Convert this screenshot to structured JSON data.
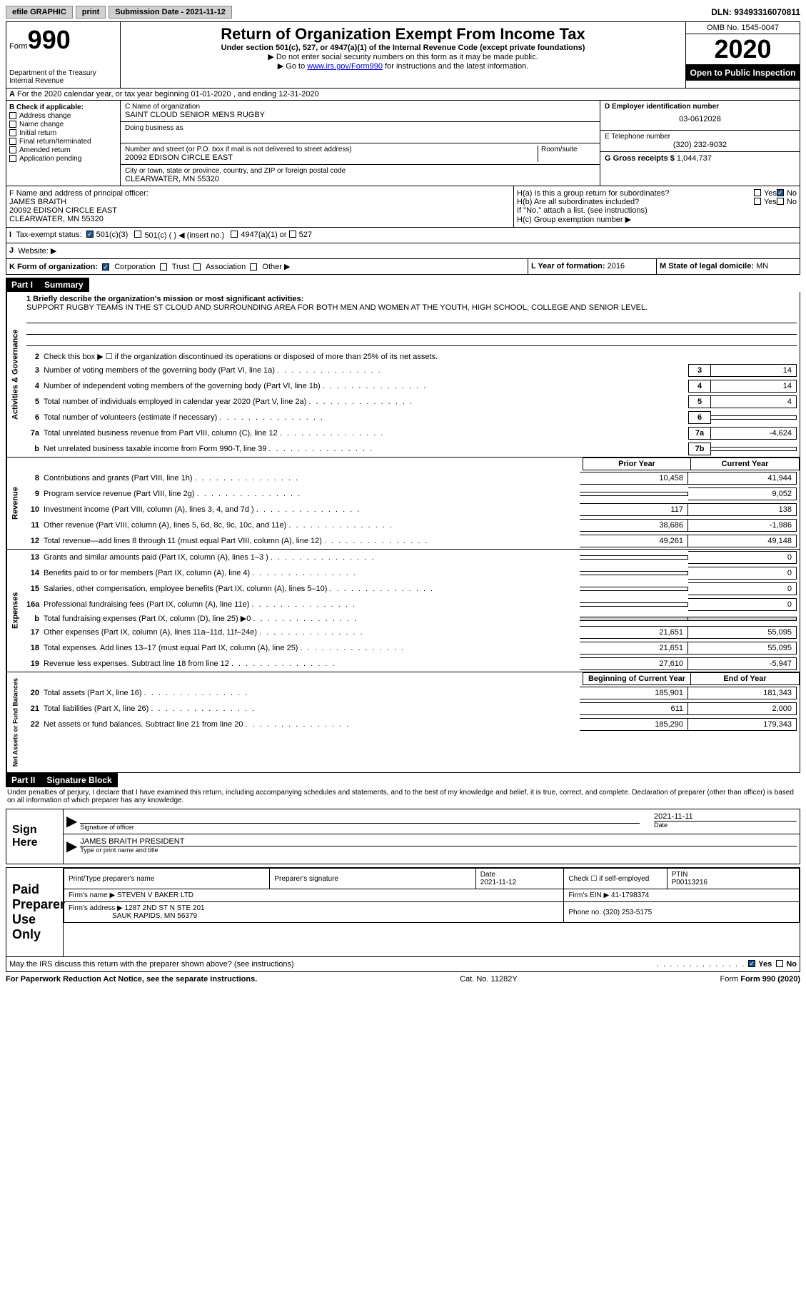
{
  "topbar": {
    "efile": "efile GRAPHIC",
    "print": "print",
    "submission": "Submission Date - 2021-11-12",
    "dln": "DLN: 93493316070811"
  },
  "header": {
    "form_label": "Form",
    "form_number": "990",
    "dept": "Department of the Treasury",
    "irs": "Internal Revenue",
    "title": "Return of Organization Exempt From Income Tax",
    "subtitle": "Under section 501(c), 527, or 4947(a)(1) of the Internal Revenue Code (except private foundations)",
    "inst1": "▶ Do not enter social security numbers on this form as it may be made public.",
    "inst2_pre": "▶ Go to ",
    "inst2_link": "www.irs.gov/Form990",
    "inst2_post": " for instructions and the latest information.",
    "omb": "OMB No. 1545-0047",
    "year": "2020",
    "inspection": "Open to Public Inspection"
  },
  "section_a": "For the 2020 calendar year, or tax year beginning 01-01-2020   , and ending 12-31-2020",
  "section_b": {
    "label": "B Check if applicable:",
    "items": [
      "Address change",
      "Name change",
      "Initial return",
      "Final return/terminated",
      "Amended return",
      "Application pending"
    ]
  },
  "section_c": {
    "name_label": "C Name of organization",
    "name": "SAINT CLOUD SENIOR MENS RUGBY",
    "dba_label": "Doing business as",
    "addr_label": "Number and street (or P.O. box if mail is not delivered to street address)",
    "room_label": "Room/suite",
    "addr": "20092 EDISON CIRCLE EAST",
    "city_label": "City or town, state or province, country, and ZIP or foreign postal code",
    "city": "CLEARWATER, MN  55320"
  },
  "section_d": {
    "label": "D Employer identification number",
    "value": "03-0612028"
  },
  "section_e": {
    "label": "E Telephone number",
    "value": "(320) 232-9032"
  },
  "section_g": {
    "label": "G Gross receipts $",
    "value": "1,044,737"
  },
  "section_f": {
    "label": "F  Name and address of principal officer:",
    "name": "JAMES BRAITH",
    "addr1": "20092 EDISON CIRCLE EAST",
    "addr2": "CLEARWATER, MN  55320"
  },
  "section_h": {
    "ha_label": "H(a)  Is this a group return for subordinates?",
    "hb_label": "H(b)  Are all subordinates included?",
    "hb_note": "If \"No,\" attach a list. (see instructions)",
    "hc_label": "H(c)  Group exemption number ▶",
    "yes": "Yes",
    "no": "No"
  },
  "section_i": {
    "label": "Tax-exempt status:",
    "opt1": "501(c)(3)",
    "opt2": "501(c) (  ) ◀ (insert no.)",
    "opt3": "4947(a)(1) or",
    "opt4": "527"
  },
  "section_j": {
    "label": "Website: ▶"
  },
  "section_k": {
    "label": "K Form of organization:",
    "opts": [
      "Corporation",
      "Trust",
      "Association",
      "Other ▶"
    ]
  },
  "section_l": {
    "label": "L Year of formation:",
    "value": "2016"
  },
  "section_m": {
    "label": "M State of legal domicile:",
    "value": "MN"
  },
  "part1": {
    "header": "Part I",
    "title": "Summary",
    "line1_label": "1  Briefly describe the organization's mission or most significant activities:",
    "line1_text": "SUPPORT RUGBY TEAMS IN THE ST CLOUD AND SURROUNDING AREA FOR BOTH MEN AND WOMEN AT THE YOUTH, HIGH SCHOOL, COLLEGE AND SENIOR LEVEL.",
    "line2": "Check this box ▶ ☐  if the organization discontinued its operations or disposed of more than 25% of its net assets.",
    "vert1": "Activities & Governance",
    "vert2": "Revenue",
    "vert3": "Expenses",
    "vert4": "Net Assets or Fund Balances",
    "lines_gov": [
      {
        "num": "3",
        "text": "Number of voting members of the governing body (Part VI, line 1a)",
        "box": "3",
        "val": "14"
      },
      {
        "num": "4",
        "text": "Number of independent voting members of the governing body (Part VI, line 1b)",
        "box": "4",
        "val": "14"
      },
      {
        "num": "5",
        "text": "Total number of individuals employed in calendar year 2020 (Part V, line 2a)",
        "box": "5",
        "val": "4"
      },
      {
        "num": "6",
        "text": "Total number of volunteers (estimate if necessary)",
        "box": "6",
        "val": ""
      },
      {
        "num": "7a",
        "text": "Total unrelated business revenue from Part VIII, column (C), line 12",
        "box": "7a",
        "val": "-4,624"
      },
      {
        "num": "b",
        "text": "Net unrelated business taxable income from Form 990-T, line 39",
        "box": "7b",
        "val": ""
      }
    ],
    "prior_header": "Prior Year",
    "current_header": "Current Year",
    "lines_rev": [
      {
        "num": "8",
        "text": "Contributions and grants (Part VIII, line 1h)",
        "prior": "10,458",
        "curr": "41,944"
      },
      {
        "num": "9",
        "text": "Program service revenue (Part VIII, line 2g)",
        "prior": "",
        "curr": "9,052"
      },
      {
        "num": "10",
        "text": "Investment income (Part VIII, column (A), lines 3, 4, and 7d )",
        "prior": "117",
        "curr": "138"
      },
      {
        "num": "11",
        "text": "Other revenue (Part VIII, column (A), lines 5, 6d, 8c, 9c, 10c, and 11e)",
        "prior": "38,686",
        "curr": "-1,986"
      },
      {
        "num": "12",
        "text": "Total revenue—add lines 8 through 11 (must equal Part VIII, column (A), line 12)",
        "prior": "49,261",
        "curr": "49,148"
      }
    ],
    "lines_exp": [
      {
        "num": "13",
        "text": "Grants and similar amounts paid (Part IX, column (A), lines 1–3 )",
        "prior": "",
        "curr": "0"
      },
      {
        "num": "14",
        "text": "Benefits paid to or for members (Part IX, column (A), line 4)",
        "prior": "",
        "curr": "0"
      },
      {
        "num": "15",
        "text": "Salaries, other compensation, employee benefits (Part IX, column (A), lines 5–10)",
        "prior": "",
        "curr": "0"
      },
      {
        "num": "16a",
        "text": "Professional fundraising fees (Part IX, column (A), line 11e)",
        "prior": "",
        "curr": "0"
      },
      {
        "num": "b",
        "text": "Total fundraising expenses (Part IX, column (D), line 25) ▶0",
        "prior": "SHADED",
        "curr": "SHADED"
      },
      {
        "num": "17",
        "text": "Other expenses (Part IX, column (A), lines 11a–11d, 11f–24e)",
        "prior": "21,651",
        "curr": "55,095"
      },
      {
        "num": "18",
        "text": "Total expenses. Add lines 13–17 (must equal Part IX, column (A), line 25)",
        "prior": "21,651",
        "curr": "55,095"
      },
      {
        "num": "19",
        "text": "Revenue less expenses. Subtract line 18 from line 12",
        "prior": "27,610",
        "curr": "-5,947"
      }
    ],
    "begin_header": "Beginning of Current Year",
    "end_header": "End of Year",
    "lines_net": [
      {
        "num": "20",
        "text": "Total assets (Part X, line 16)",
        "prior": "185,901",
        "curr": "181,343"
      },
      {
        "num": "21",
        "text": "Total liabilities (Part X, line 26)",
        "prior": "611",
        "curr": "2,000"
      },
      {
        "num": "22",
        "text": "Net assets or fund balances. Subtract line 21 from line 20",
        "prior": "185,290",
        "curr": "179,343"
      }
    ]
  },
  "part2": {
    "header": "Part II",
    "title": "Signature Block",
    "penalty": "Under penalties of perjury, I declare that I have examined this return, including accompanying schedules and statements, and to the best of my knowledge and belief, it is true, correct, and complete. Declaration of preparer (other than officer) is based on all information of which preparer has any knowledge.",
    "sign_here": "Sign Here",
    "sig_officer": "Signature of officer",
    "sig_date": "2021-11-11",
    "date_label": "Date",
    "officer_name": "JAMES BRAITH  PRESIDENT",
    "type_label": "Type or print name and title",
    "paid_prep": "Paid Preparer Use Only",
    "prep_name_label": "Print/Type preparer's name",
    "prep_sig_label": "Preparer's signature",
    "prep_date_label": "Date",
    "prep_date": "2021-11-12",
    "check_self": "Check ☐ if self-employed",
    "ptin_label": "PTIN",
    "ptin": "P00113216",
    "firm_name_label": "Firm's name    ▶",
    "firm_name": "STEVEN V BAKER LTD",
    "firm_ein_label": "Firm's EIN ▶",
    "firm_ein": "41-1798374",
    "firm_addr_label": "Firm's address ▶",
    "firm_addr1": "1287 2ND ST N STE 201",
    "firm_addr2": "SAUK RAPIDS, MN  56379",
    "phone_label": "Phone no.",
    "phone": "(320) 253-5175",
    "discuss": "May the IRS discuss this return with the preparer shown above? (see instructions)",
    "yes": "Yes",
    "no": "No"
  },
  "footer": {
    "pra": "For Paperwork Reduction Act Notice, see the separate instructions.",
    "cat": "Cat. No. 11282Y",
    "form": "Form 990 (2020)"
  }
}
